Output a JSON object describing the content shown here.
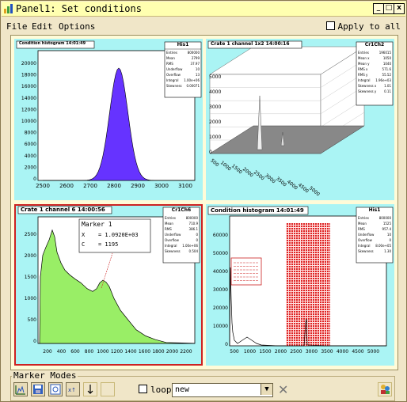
{
  "window": {
    "title": "Panel1: Set conditions",
    "min": "_",
    "max": "□",
    "close": "x"
  },
  "menu": {
    "file": "File",
    "edit": "Edit",
    "options": "Options",
    "apply_all": "Apply to all"
  },
  "pads": {
    "p1": {
      "title": "Condition histogram 14:01:49",
      "stats": {
        "title": "His1",
        "rows": [
          [
            "Entries",
            "800000"
          ],
          [
            "Mean",
            "2799"
          ],
          [
            "RMS",
            "37.97"
          ],
          [
            "Underflow",
            "10"
          ],
          [
            "Overflow",
            "13"
          ],
          [
            "Integral",
            "1.00e+06"
          ],
          [
            "Skewness",
            "0.00071"
          ]
        ]
      },
      "xticks": [
        "2500",
        "2600",
        "2700",
        "2800",
        "2900",
        "3000",
        "3100"
      ],
      "yticks": [
        "20000",
        "18000",
        "16000",
        "14000",
        "12000",
        "10000",
        "8000",
        "6000",
        "4000",
        "2000",
        "0"
      ]
    },
    "p2": {
      "title": "Crate 1 channel 1x2 14:00:16",
      "stats": {
        "title": "Cr1Ch2",
        "rows": [
          [
            "Entries",
            "196015"
          ],
          [
            "Mean x",
            "1050"
          ],
          [
            "Mean y",
            "1040"
          ],
          [
            "RMS x",
            "571.6"
          ],
          [
            "RMS y",
            "55.52"
          ],
          [
            "Integral",
            "1.96e+03"
          ],
          [
            "Skewness x",
            "1.01"
          ],
          [
            "Skewness y",
            "0.11"
          ]
        ]
      },
      "zticks": [
        "5000",
        "4000",
        "3000",
        "2000",
        "1000",
        "0"
      ],
      "xticks": [
        "500",
        "1000",
        "1500",
        "2000",
        "2500",
        "3000",
        "3500",
        "4000",
        "4500",
        "5000"
      ]
    },
    "p3": {
      "title": "Crate 1 channel 6 14:00:56",
      "stats": {
        "title": "Cr1Ch6",
        "rows": [
          [
            "Entries",
            "800000"
          ],
          [
            "Mean",
            "710.9"
          ],
          [
            "RMS",
            "386.1"
          ],
          [
            "Underflow",
            "0"
          ],
          [
            "Overflow",
            "0"
          ],
          [
            "Integral",
            "1.00e+06"
          ],
          [
            "Skewness",
            "0.504"
          ]
        ]
      },
      "marker": {
        "title": "Marker 1",
        "x_label": "X",
        "x_val": "= 1.0920E+03",
        "c_label": "C",
        "c_val": "= 1195"
      },
      "yticks": [
        "2500",
        "2000",
        "1500",
        "1000",
        "500",
        "0"
      ],
      "xticks": [
        "200",
        "400",
        "600",
        "800",
        "1000",
        "1200",
        "1400",
        "1600",
        "1800",
        "2000",
        "2200"
      ]
    },
    "p4": {
      "title": "Condition histogram 14:01:49",
      "stats": {
        "title": "His1",
        "rows": [
          [
            "Entries",
            "800000"
          ],
          [
            "Mean",
            "1525"
          ],
          [
            "RMS",
            "957.4"
          ],
          [
            "Underflow",
            "10"
          ],
          [
            "Overflow",
            "0"
          ],
          [
            "Integral",
            "8.00e+05"
          ],
          [
            "Skewness",
            "1.30"
          ]
        ]
      },
      "yticks": [
        "60000",
        "50000",
        "40000",
        "30000",
        "20000",
        "10000",
        "0"
      ],
      "xticks": [
        "500",
        "1000",
        "1500",
        "2000",
        "2500",
        "3000",
        "3500",
        "4000",
        "4500",
        "5000"
      ]
    }
  },
  "modes": {
    "label": "Marker Modes",
    "loop": "loop",
    "combo_value": "new",
    "combo_arrow": "▼",
    "close": "✕"
  },
  "colors": {
    "pad_bg": "#aaf4f4",
    "hist1_fill": "#6633ff",
    "hist3_fill": "#99ee66",
    "cond_fill": "#dd2222",
    "frame": "#cc2222"
  }
}
